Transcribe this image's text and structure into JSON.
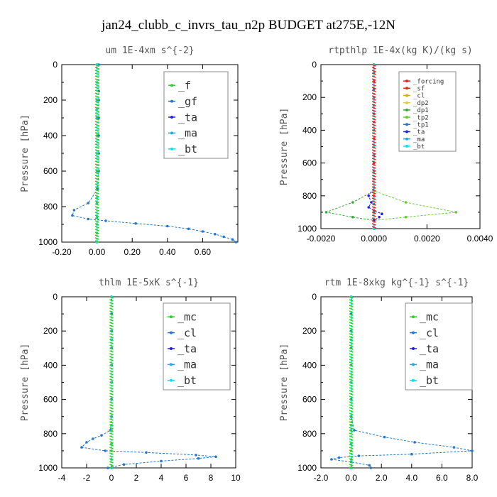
{
  "suptitle": "jan24_clubb_c_invrs_tau_n2p  BUDGET at275E,-12N",
  "chart_data": [
    {
      "type": "line",
      "title": "um   1E-4xm  s^{-2}",
      "ylabel": "Pressure [hPa]",
      "xlim": [
        -0.2,
        0.8
      ],
      "ylim": [
        1000,
        0
      ],
      "xticks": [
        -0.2,
        0,
        0.2,
        0.4,
        0.6
      ],
      "xticklabels": [
        "-0.20",
        "0.00",
        "0.20",
        "0.40",
        "0.60"
      ],
      "yticks": [
        0,
        200,
        400,
        600,
        800,
        1000
      ],
      "yticklabels": [
        "0",
        "200",
        "400",
        "600",
        "800",
        "1000"
      ],
      "legend_font": 15,
      "legend_entries": [
        "_f",
        "_gf",
        "_ta",
        "_ma",
        "_bt"
      ],
      "series": [
        {
          "name": "_f",
          "color": "#33cc33",
          "x": [
            0,
            0,
            0,
            0,
            0,
            0,
            0,
            0,
            0,
            0,
            0,
            0,
            0
          ],
          "y": [
            0,
            100,
            200,
            300,
            400,
            500,
            600,
            700,
            780,
            860,
            900,
            950,
            1000
          ]
        },
        {
          "name": "_gf",
          "color": "#2277cc",
          "x": [
            0.01,
            0.01,
            0.01,
            0.01,
            0.01,
            0.01,
            0.01,
            0.005,
            -0.05,
            -0.13,
            -0.14,
            -0.05,
            0.05,
            0.22,
            0.4,
            0.52,
            0.6,
            0.67,
            0.72,
            0.77,
            0.79
          ],
          "y": [
            0,
            150,
            200,
            300,
            400,
            500,
            600,
            700,
            780,
            820,
            850,
            870,
            880,
            895,
            910,
            925,
            940,
            955,
            970,
            985,
            1000
          ]
        },
        {
          "name": "_ta",
          "color": "#2222dd",
          "x": [
            0,
            0,
            0,
            0,
            0
          ],
          "y": [
            0,
            250,
            500,
            750,
            1000
          ]
        },
        {
          "name": "_ma",
          "color": "#22aadd",
          "x": [
            0,
            0,
            0,
            0,
            0
          ],
          "y": [
            0,
            250,
            500,
            750,
            1000
          ]
        },
        {
          "name": "_bt",
          "color": "#00e5ee",
          "x": [
            0,
            0,
            0,
            0,
            0
          ],
          "y": [
            0,
            250,
            500,
            750,
            1000
          ]
        }
      ]
    },
    {
      "type": "line",
      "title": "rtpthlp   1E-4x(kg K)/(kg s)",
      "ylabel": "Pressure [hPa]",
      "xlim": [
        -0.002,
        0.004
      ],
      "ylim": [
        1000,
        0
      ],
      "xticks": [
        -0.002,
        0,
        0.002,
        0.004
      ],
      "xticklabels": [
        "-0.0020",
        "0.0000",
        "0.0020",
        "0.0040"
      ],
      "yticks": [
        0,
        200,
        400,
        600,
        800,
        1000
      ],
      "yticklabels": [
        "0",
        "200",
        "400",
        "600",
        "800",
        "1000"
      ],
      "legend_font": 9,
      "legend_entries": [
        "_forcing",
        "_sf",
        "_cl",
        "_dp2",
        "_dp1",
        "_tp2",
        "_tp1",
        "_ta",
        "_ma",
        "_bt"
      ],
      "series": [
        {
          "name": "_forcing",
          "color": "#ee2222",
          "x": [
            0,
            0,
            0,
            0,
            0
          ],
          "y": [
            0,
            250,
            500,
            750,
            1000
          ]
        },
        {
          "name": "_sf",
          "color": "#dd3311",
          "x": [
            0,
            0,
            0,
            0,
            0,
            0,
            0,
            0,
            0,
            0,
            0,
            0,
            0,
            0,
            0,
            0,
            0,
            0,
            0,
            0,
            0
          ],
          "y": [
            0,
            50,
            100,
            150,
            200,
            250,
            300,
            350,
            400,
            450,
            500,
            550,
            600,
            650,
            700,
            750,
            800,
            850,
            900,
            950,
            1000
          ]
        },
        {
          "name": "_cl",
          "color": "#ddaa00",
          "x": [
            0,
            0,
            0,
            0,
            0
          ],
          "y": [
            0,
            250,
            500,
            750,
            1000
          ]
        },
        {
          "name": "_dp2",
          "color": "#ddcc44",
          "x": [
            0,
            0,
            0,
            0,
            0
          ],
          "y": [
            0,
            250,
            500,
            750,
            1000
          ]
        },
        {
          "name": "_dp1",
          "color": "#33aa33",
          "x": [
            0,
            0,
            0,
            -0.0008,
            -0.0018,
            -0.0008,
            0,
            0
          ],
          "y": [
            0,
            700,
            770,
            840,
            900,
            930,
            950,
            1000
          ]
        },
        {
          "name": "_tp2",
          "color": "#66cc33",
          "x": [
            0,
            0,
            0,
            0.0012,
            0.0031,
            0.0012,
            0,
            0
          ],
          "y": [
            0,
            700,
            770,
            840,
            900,
            930,
            950,
            1000
          ]
        },
        {
          "name": "_tp1",
          "color": "#2277cc",
          "x": [
            0,
            0,
            0,
            0,
            0
          ],
          "y": [
            0,
            250,
            500,
            750,
            1000
          ]
        },
        {
          "name": "_ta",
          "color": "#2222dd",
          "x": [
            0,
            0,
            -0.0002,
            -0.0001,
            -0.0002,
            0,
            0.0003,
            0.0002,
            0,
            0
          ],
          "y": [
            0,
            750,
            800,
            840,
            870,
            890,
            910,
            930,
            950,
            1000
          ]
        },
        {
          "name": "_ma",
          "color": "#22aadd",
          "x": [
            0,
            0,
            0,
            0,
            0
          ],
          "y": [
            0,
            250,
            500,
            750,
            1000
          ]
        },
        {
          "name": "_bt",
          "color": "#00e5ee",
          "x": [
            0,
            0,
            0,
            0,
            0
          ],
          "y": [
            0,
            250,
            500,
            750,
            1000
          ]
        }
      ]
    },
    {
      "type": "line",
      "title": "thlm   1E-5xK  s^{-1}",
      "ylabel": "Pressure [hPa]",
      "xlim": [
        -4,
        10
      ],
      "ylim": [
        1000,
        0
      ],
      "xticks": [
        -4,
        -2,
        0,
        2,
        4,
        6,
        8,
        10
      ],
      "xticklabels": [
        "-4",
        "-2",
        "0",
        "2",
        "4",
        "6",
        "8",
        "10"
      ],
      "yticks": [
        0,
        200,
        400,
        600,
        800,
        1000
      ],
      "yticklabels": [
        "0",
        "200",
        "400",
        "600",
        "800",
        "1000"
      ],
      "legend_font": 15,
      "legend_entries": [
        "_mc",
        "_cl",
        "_ta",
        "_ma",
        "_bt"
      ],
      "series": [
        {
          "name": "_mc",
          "color": "#33cc33",
          "x": [
            0,
            0,
            0,
            0,
            0,
            0,
            0,
            0,
            0,
            0,
            0,
            0,
            0
          ],
          "y": [
            0,
            100,
            200,
            300,
            400,
            500,
            600,
            700,
            780,
            860,
            900,
            950,
            1000
          ]
        },
        {
          "name": "_cl",
          "color": "#2277cc",
          "x": [
            0,
            0,
            0,
            0,
            0,
            0,
            0,
            0,
            -0.1,
            -0.8,
            -1.5,
            -2.0,
            -2.4,
            -0.5,
            2.8,
            6.8,
            8.4,
            7.0,
            4.0,
            1.0,
            -0.3
          ],
          "y": [
            0,
            100,
            200,
            300,
            400,
            500,
            600,
            700,
            780,
            810,
            830,
            850,
            880,
            900,
            910,
            925,
            935,
            945,
            960,
            980,
            1000
          ]
        },
        {
          "name": "_ta",
          "color": "#2222dd",
          "x": [
            0,
            0,
            0,
            0,
            0
          ],
          "y": [
            0,
            250,
            500,
            750,
            1000
          ]
        },
        {
          "name": "_ma",
          "color": "#22aadd",
          "x": [
            0,
            0,
            0,
            0,
            0
          ],
          "y": [
            0,
            250,
            500,
            750,
            1000
          ]
        },
        {
          "name": "_bt",
          "color": "#00e5ee",
          "x": [
            0,
            0,
            0,
            0,
            0
          ],
          "y": [
            0,
            250,
            500,
            750,
            1000
          ]
        }
      ]
    },
    {
      "type": "line",
      "title": "rtm   1E-8xkg kg^{-1} s^{-1}",
      "ylabel": "Pressure [hPa]",
      "xlim": [
        -2,
        8
      ],
      "ylim": [
        1000,
        0
      ],
      "xticks": [
        -2,
        0,
        2,
        4,
        6,
        8
      ],
      "xticklabels": [
        "-2.0",
        "0.0",
        "2.0",
        "4.0",
        "6.0",
        "8.0"
      ],
      "yticks": [
        0,
        200,
        400,
        600,
        800,
        1000
      ],
      "yticklabels": [
        "0",
        "200",
        "400",
        "600",
        "800",
        "1000"
      ],
      "legend_font": 15,
      "legend_entries": [
        "_mc",
        "_cl",
        "_ta",
        "_ma",
        "_bt"
      ],
      "series": [
        {
          "name": "_mc",
          "color": "#33cc33",
          "x": [
            0,
            0,
            0,
            0,
            0,
            0,
            0,
            0,
            0,
            0,
            0,
            0,
            0
          ],
          "y": [
            0,
            100,
            200,
            300,
            400,
            500,
            600,
            700,
            780,
            860,
            900,
            950,
            1000
          ]
        },
        {
          "name": "_cl",
          "color": "#2277cc",
          "x": [
            0,
            0,
            0,
            0,
            0,
            0,
            0,
            0,
            0.2,
            2.2,
            4.2,
            6.8,
            8.0,
            4.0,
            0.5,
            -0.8,
            -1.3,
            0,
            1.2,
            1.3
          ],
          "y": [
            0,
            100,
            200,
            300,
            400,
            500,
            600,
            700,
            780,
            820,
            850,
            880,
            900,
            920,
            930,
            940,
            950,
            965,
            985,
            1000
          ]
        },
        {
          "name": "_ta",
          "color": "#2222dd",
          "x": [
            0,
            0,
            0,
            0,
            0
          ],
          "y": [
            0,
            250,
            500,
            750,
            1000
          ]
        },
        {
          "name": "_ma",
          "color": "#22aadd",
          "x": [
            0,
            0,
            0,
            0,
            0
          ],
          "y": [
            0,
            250,
            500,
            750,
            1000
          ]
        },
        {
          "name": "_bt",
          "color": "#00e5ee",
          "x": [
            0,
            0,
            0,
            0,
            0
          ],
          "y": [
            0,
            250,
            500,
            750,
            1000
          ]
        }
      ]
    }
  ]
}
